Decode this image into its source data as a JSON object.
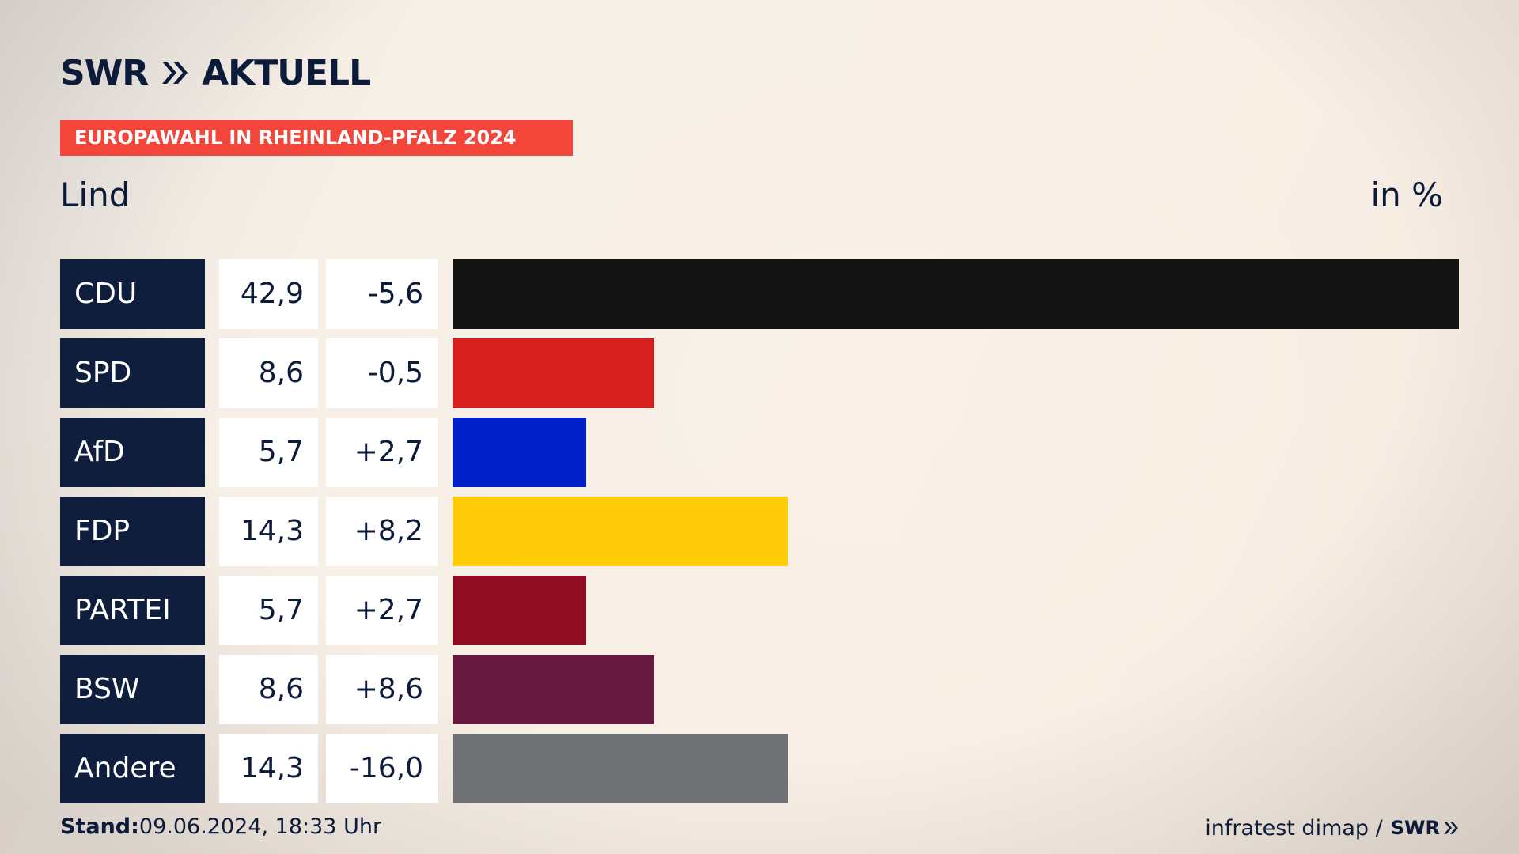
{
  "brand": {
    "logo_text": "SWR",
    "logo_suffix": "AKTUELL",
    "logo_icon": "double-chevron-icon"
  },
  "banner": {
    "text": "EUROPAWAHL IN RHEINLAND-PFALZ 2024"
  },
  "region": "Lind",
  "unit": "in %",
  "chart_data": {
    "type": "bar",
    "orientation": "horizontal",
    "categories": [
      "CDU",
      "SPD",
      "AfD",
      "FDP",
      "PARTEI",
      "BSW",
      "Andere"
    ],
    "values": [
      42.9,
      8.6,
      5.7,
      14.3,
      5.7,
      8.6,
      14.3
    ],
    "value_labels": [
      "42,9",
      "8,6",
      "5,7",
      "14,3",
      "5,7",
      "8,6",
      "14,3"
    ],
    "changes": [
      -5.6,
      -0.5,
      2.7,
      8.2,
      2.7,
      8.6,
      -16.0
    ],
    "change_labels": [
      "-5,6",
      "-0,5",
      "+2,7",
      "+8,2",
      "+2,7",
      "+8,6",
      "-16,0"
    ],
    "colors": [
      "#141414",
      "#d71f1f",
      "#0021c9",
      "#ffcc0a",
      "#8f0d22",
      "#651a3e",
      "#707173"
    ],
    "xlim": [
      0,
      42.9
    ]
  },
  "footer": {
    "stand_label": "Stand:",
    "stand_value": "09.06.2024, 18:33 Uhr",
    "source": "infratest dimap /",
    "source_logo": "SWR"
  },
  "colors": {
    "navy": "#0f1e3d",
    "accent": "#f2463b"
  }
}
